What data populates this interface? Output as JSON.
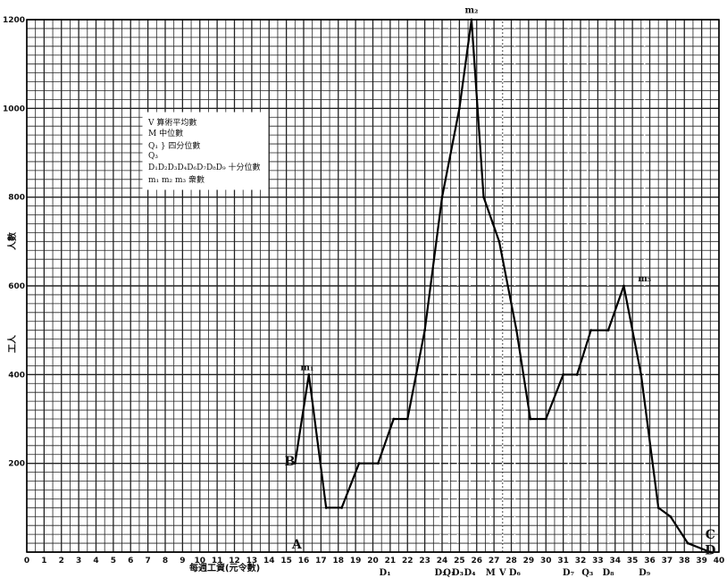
{
  "chart_data": {
    "type": "line",
    "title": "",
    "xlabel": "每週工資(元令數)",
    "ylabel": "人數",
    "ylabel2": "工人",
    "xlim": [
      0,
      40
    ],
    "ylim": [
      0,
      1200
    ],
    "grid": true,
    "x_ticks": [
      "0",
      "1",
      "2",
      "3",
      "4",
      "5",
      "6",
      "7",
      "8",
      "9",
      "10",
      "11",
      "12",
      "13",
      "14",
      "15",
      "16",
      "17",
      "18",
      "19",
      "20",
      "21",
      "22",
      "23",
      "24",
      "25",
      "26",
      "27",
      "28",
      "29",
      "30",
      "31",
      "32",
      "33",
      "34",
      "35",
      "36",
      "37",
      "38",
      "39",
      "40"
    ],
    "y_ticks": [
      "200",
      "400",
      "600",
      "800",
      "1000",
      "1200"
    ],
    "series": [
      {
        "name": "",
        "x": [
          15.5,
          16.3,
          17.3,
          18.2,
          19.2,
          20.3,
          21.2,
          22.0,
          23.0,
          24.0,
          25.0,
          25.7,
          26.4,
          27.3,
          28.3,
          29.1,
          30.0,
          31.0,
          31.8,
          32.6,
          33.6,
          34.5,
          35.5,
          36.5,
          37.2,
          38.2,
          39.5
        ],
        "y": [
          200,
          400,
          100,
          100,
          200,
          200,
          300,
          300,
          500,
          800,
          1000,
          1200,
          800,
          700,
          500,
          300,
          300,
          400,
          400,
          500,
          500,
          600,
          400,
          100,
          80,
          20,
          0
        ]
      }
    ],
    "vlines": [
      {
        "x": 23.9,
        "label": "D₂"
      },
      {
        "x": 24.4,
        "label": "Q₁"
      },
      {
        "x": 24.9,
        "label": "D₃"
      },
      {
        "x": 25.6,
        "label": "D₄"
      },
      {
        "x": 26.8,
        "label": "M"
      },
      {
        "x": 27.5,
        "label": "V"
      },
      {
        "x": 28.2,
        "label": "D₆"
      },
      {
        "x": 31.3,
        "label": "D₇"
      },
      {
        "x": 32.4,
        "label": "Q₃"
      },
      {
        "x": 33.6,
        "label": "D₈"
      },
      {
        "x": 35.7,
        "label": "D₉"
      }
    ],
    "d1": {
      "x": 20.7,
      "label": "D₁"
    },
    "point_labels": [
      {
        "x": 16.2,
        "y": 410,
        "text": "m₁"
      },
      {
        "x": 25.7,
        "y": 1215,
        "text": "m₂"
      },
      {
        "x": 35.7,
        "y": 610,
        "text": "m₃"
      },
      {
        "x": 15.2,
        "y": 195,
        "text": "B"
      },
      {
        "x": 15.6,
        "y": 8,
        "text": "A"
      },
      {
        "x": 39.5,
        "y": 30,
        "text": "C"
      },
      {
        "x": 39.5,
        "y": -5,
        "text": "D"
      }
    ],
    "legend": {
      "placement": "top-left",
      "lines": [
        "V 算術平均數",
        "M 中位數",
        "Q₁ } 四分位數",
        "Q₃",
        "D₁D₂D₃D₄D₆D₇D₈D₉ 十分位數",
        "m₁ m₂ m₃ 衆數"
      ]
    }
  }
}
